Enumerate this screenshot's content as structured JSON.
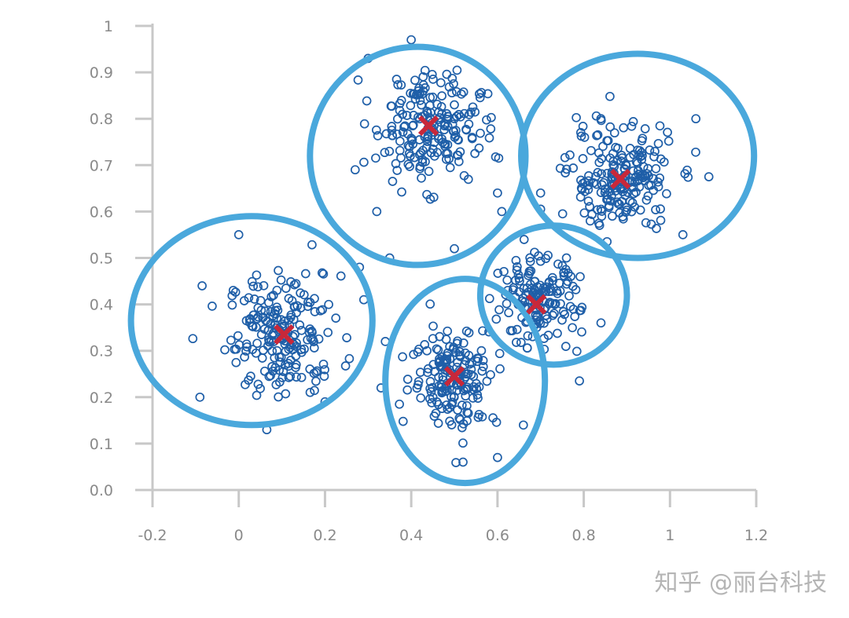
{
  "chart_data": {
    "type": "scatter",
    "title": "",
    "xlabel": "",
    "ylabel": "",
    "xlim": [
      -0.2,
      1.2
    ],
    "ylim": [
      0.0,
      1.0
    ],
    "xticks": [
      "-0.2",
      "0",
      "0.2",
      "0.4",
      "0.6",
      "0.8",
      "1",
      "1.2"
    ],
    "xtick_values": [
      -0.2,
      0,
      0.2,
      0.4,
      0.6,
      0.8,
      1.0,
      1.2
    ],
    "yticks": [
      "0.0",
      "0.1",
      "0.2",
      "0.3",
      "0.4",
      "0.5",
      "0.6",
      "0.7",
      "0.8",
      "0.9",
      "1"
    ],
    "ytick_values": [
      0.0,
      0.1,
      0.2,
      0.3,
      0.4,
      0.5,
      0.6,
      0.7,
      0.8,
      0.9,
      1.0
    ],
    "colors": {
      "points": "#1f5fa8",
      "clusters": "#4aa8dc",
      "centroids": "#c8283a",
      "axes": "#c8c8c8",
      "ticks": "#8a8a8a"
    },
    "clusters": [
      {
        "centroid": [
          0.105,
          0.335
        ],
        "boundary_center": [
          0.03,
          0.365
        ],
        "boundary_radii": [
          0.28,
          0.225
        ],
        "spread": [
          0.065,
          0.065
        ],
        "n_points": 200,
        "outliers": [
          [
            0.0,
            0.55
          ],
          [
            0.065,
            0.13
          ],
          [
            -0.09,
            0.2
          ],
          [
            -0.085,
            0.44
          ],
          [
            0.2,
            0.19
          ],
          [
            0.29,
            0.41
          ],
          [
            0.28,
            0.48
          ]
        ]
      },
      {
        "centroid": [
          0.44,
          0.785
        ],
        "boundary_center": [
          0.415,
          0.72
        ],
        "boundary_radii": [
          0.25,
          0.235
        ],
        "spread": [
          0.06,
          0.06
        ],
        "n_points": 200,
        "outliers": [
          [
            0.4,
            0.97
          ],
          [
            0.3,
            0.93
          ],
          [
            0.27,
            0.69
          ],
          [
            0.32,
            0.6
          ],
          [
            0.35,
            0.5
          ],
          [
            0.5,
            0.52
          ],
          [
            0.6,
            0.64
          ],
          [
            0.61,
            0.6
          ]
        ]
      },
      {
        "centroid": [
          0.885,
          0.67
        ],
        "boundary_center": [
          0.925,
          0.72
        ],
        "boundary_radii": [
          0.27,
          0.22
        ],
        "spread": [
          0.06,
          0.06
        ],
        "n_points": 200,
        "outliers": [
          [
            1.06,
            0.8
          ],
          [
            1.09,
            0.675
          ],
          [
            1.03,
            0.55
          ],
          [
            0.7,
            0.64
          ],
          [
            0.7,
            0.605
          ]
        ]
      },
      {
        "centroid": [
          0.69,
          0.4
        ],
        "boundary_center": [
          0.73,
          0.42
        ],
        "boundary_radii": [
          0.17,
          0.15
        ],
        "spread": [
          0.05,
          0.05
        ],
        "n_points": 150,
        "outliers": [
          [
            0.79,
            0.235
          ],
          [
            0.84,
            0.36
          ],
          [
            0.76,
            0.5
          ]
        ]
      },
      {
        "centroid": [
          0.5,
          0.245
        ],
        "boundary_center": [
          0.525,
          0.235
        ],
        "boundary_radii": [
          0.185,
          0.22
        ],
        "spread": [
          0.05,
          0.055
        ],
        "n_points": 170,
        "outliers": [
          [
            0.52,
            0.06
          ],
          [
            0.6,
            0.07
          ],
          [
            0.66,
            0.14
          ],
          [
            0.34,
            0.32
          ],
          [
            0.33,
            0.22
          ]
        ]
      }
    ]
  },
  "watermark": "知乎 @丽台科技"
}
